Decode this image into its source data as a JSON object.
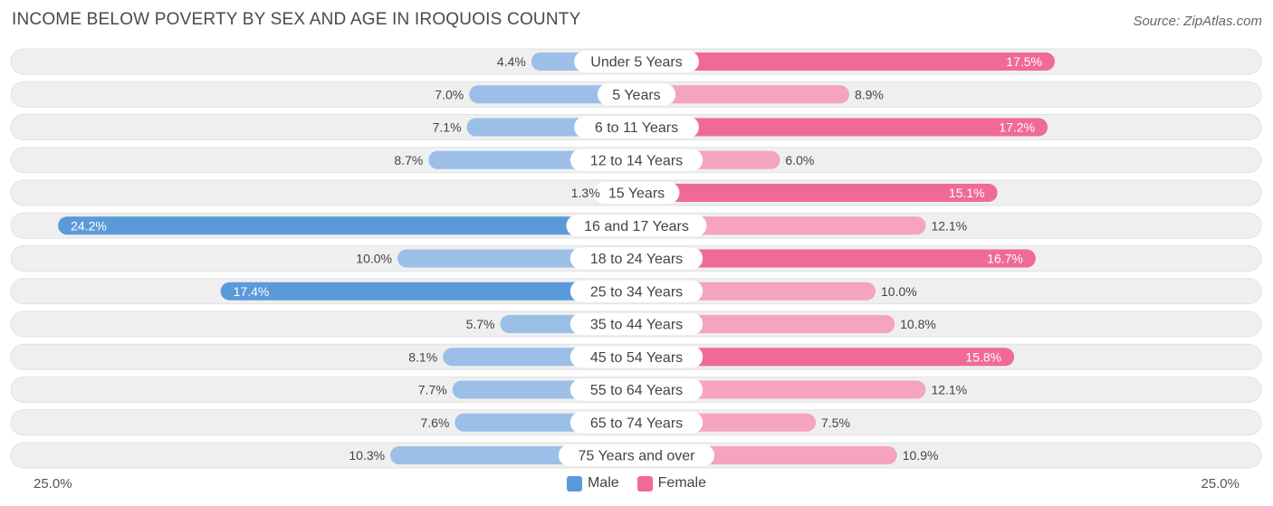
{
  "header": {
    "title": "INCOME BELOW POVERTY BY SEX AND AGE IN IROQUOIS COUNTY",
    "source": "Source: ZipAtlas.com"
  },
  "colors": {
    "male_strong": "#5b9ad9",
    "male_light": "#9bbfe7",
    "female_strong": "#f06a96",
    "female_light": "#f5a3bf",
    "row_bg": "#efefef"
  },
  "axis": {
    "left_label": "25.0%",
    "right_label": "25.0%"
  },
  "legend": {
    "male": "Male",
    "female": "Female"
  },
  "chart_data": {
    "type": "bar",
    "orientation": "horizontal-diverging",
    "title": "INCOME BELOW POVERTY BY SEX AND AGE IN IROQUOIS COUNTY",
    "xlim": [
      -25,
      25
    ],
    "categories": [
      "Under 5 Years",
      "5 Years",
      "6 to 11 Years",
      "12 to 14 Years",
      "15 Years",
      "16 and 17 Years",
      "18 to 24 Years",
      "25 to 34 Years",
      "35 to 44 Years",
      "45 to 54 Years",
      "55 to 64 Years",
      "65 to 74 Years",
      "75 Years and over"
    ],
    "series": [
      {
        "name": "Male",
        "values": [
          4.4,
          7.0,
          7.1,
          8.7,
          1.3,
          24.2,
          10.0,
          17.4,
          5.7,
          8.1,
          7.7,
          7.6,
          10.3
        ],
        "labels": [
          "4.4%",
          "7.0%",
          "7.1%",
          "8.7%",
          "1.3%",
          "24.2%",
          "10.0%",
          "17.4%",
          "5.7%",
          "8.1%",
          "7.7%",
          "7.6%",
          "10.3%"
        ]
      },
      {
        "name": "Female",
        "values": [
          17.5,
          8.9,
          17.2,
          6.0,
          15.1,
          12.1,
          16.7,
          10.0,
          10.8,
          15.8,
          12.1,
          7.5,
          10.9
        ],
        "labels": [
          "17.5%",
          "8.9%",
          "17.2%",
          "6.0%",
          "15.1%",
          "12.1%",
          "16.7%",
          "10.0%",
          "10.8%",
          "15.8%",
          "12.1%",
          "7.5%",
          "10.9%"
        ]
      }
    ]
  }
}
